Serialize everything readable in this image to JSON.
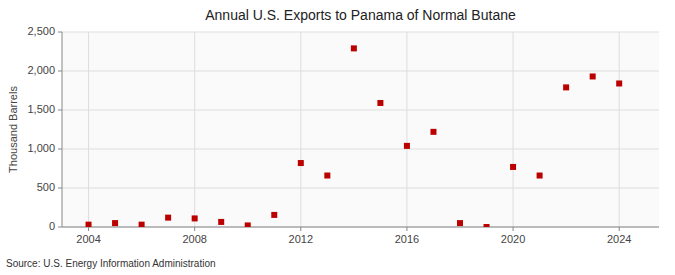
{
  "chart_data": {
    "type": "scatter",
    "title": "Annual U.S. Exports to Panama of Normal Butane",
    "y_label": "Thousand Barrels",
    "annotations": [
      "Source: U.S. Energy Information Administration"
    ],
    "x": [
      2004,
      2005,
      2006,
      2007,
      2008,
      2009,
      2010,
      2011,
      2012,
      2013,
      2014,
      2015,
      2016,
      2017,
      2018,
      2019,
      2020,
      2021,
      2022,
      2023,
      2024
    ],
    "values": [
      30,
      50,
      30,
      120,
      110,
      65,
      20,
      155,
      820,
      660,
      2290,
      1590,
      1040,
      1220,
      50,
      0,
      770,
      660,
      1790,
      1930,
      1840
    ],
    "color": "#bb0000",
    "marker": "square",
    "xlim": [
      2003.0,
      2025.5
    ],
    "ylim": [
      0,
      2500
    ],
    "xticks": [
      2004,
      2008,
      2012,
      2016,
      2020,
      2024
    ],
    "yticks": [
      0,
      500,
      {
        "value": 1000,
        "label": "1,000"
      },
      {
        "value": 1500,
        "label": "1,500"
      },
      {
        "value": 2000,
        "label": "2,000"
      },
      {
        "value": 2500,
        "label": "2,500"
      }
    ],
    "grid": true
  }
}
